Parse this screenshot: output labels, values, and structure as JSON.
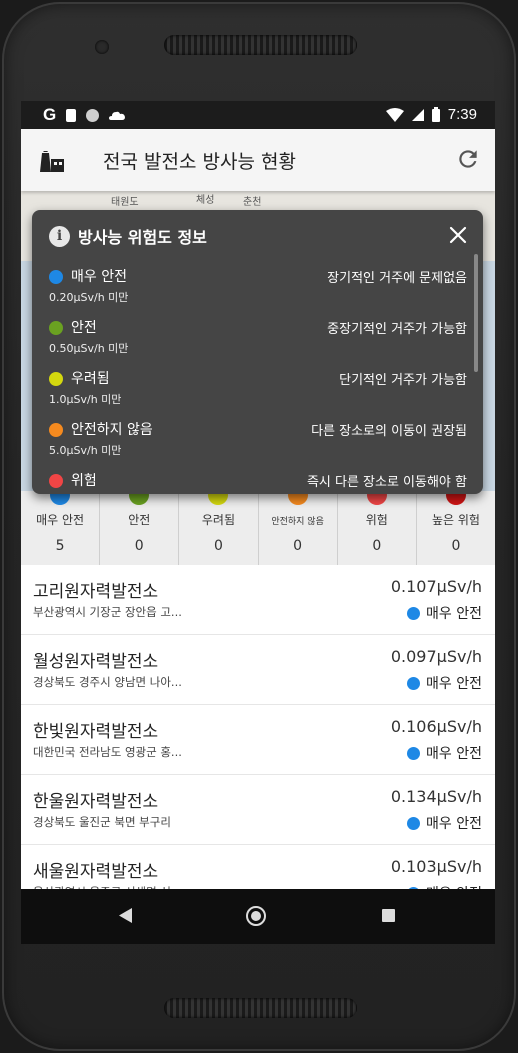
{
  "status_bar": {
    "left_glyph": "G",
    "time": "7:39"
  },
  "app_bar": {
    "title": "전국 발전소 방사능 현황"
  },
  "map": {
    "labels": [
      "태원도",
      "체성",
      "춘천"
    ]
  },
  "dialog": {
    "title": "방사능 위험도 정보",
    "items": [
      {
        "name": "매우 안전",
        "limit": "0.20μSv/h 미만",
        "desc": "장기적인 거주에 문제없음",
        "color": "#1e88e5"
      },
      {
        "name": "안전",
        "limit": "0.50μSv/h 미만",
        "desc": "중장기적인 거주가 가능함",
        "color": "#6aa121"
      },
      {
        "name": "우려됨",
        "limit": "1.0μSv/h 미만",
        "desc": "단기적인 거주가 가능함",
        "color": "#d4d80f"
      },
      {
        "name": "안전하지 않음",
        "limit": "5.0μSv/h 미만",
        "desc": "다른 장소로의 이동이 권장됨",
        "color": "#f58a1f"
      },
      {
        "name": "위험",
        "limit": "",
        "desc": "즉시 다른 장소로 이동해야 함",
        "color": "#f04545"
      }
    ]
  },
  "levels": [
    {
      "name": "매우 안전",
      "count": "5",
      "color": "#1e88e5"
    },
    {
      "name": "안전",
      "count": "0",
      "color": "#6aa121"
    },
    {
      "name": "우려됨",
      "count": "0",
      "color": "#d4d80f"
    },
    {
      "name": "안전하지 않음",
      "count": "0",
      "color": "#f58a1f"
    },
    {
      "name": "위험",
      "count": "0",
      "color": "#f04545"
    },
    {
      "name": "높은 위험",
      "count": "0",
      "color": "#d01515"
    }
  ],
  "plants": [
    {
      "name": "고리원자력발전소",
      "address": "부산광역시 기장군 장안읍 고...",
      "value": "0.107μSv/h",
      "status": "매우 안전",
      "color": "#1e88e5"
    },
    {
      "name": "월성원자력발전소",
      "address": "경상북도 경주시 양남면 나아...",
      "value": "0.097μSv/h",
      "status": "매우 안전",
      "color": "#1e88e5"
    },
    {
      "name": "한빛원자력발전소",
      "address": "대한민국 전라남도 영광군 홍...",
      "value": "0.106μSv/h",
      "status": "매우 안전",
      "color": "#1e88e5"
    },
    {
      "name": "한울원자력발전소",
      "address": "경상북도 울진군 북면 부구리",
      "value": "0.134μSv/h",
      "status": "매우 안전",
      "color": "#1e88e5"
    },
    {
      "name": "새울원자력발전소",
      "address": "울산광역시 울주군 서생면 신...",
      "value": "0.103μSv/h",
      "status": "매우 안전",
      "color": "#1e88e5"
    }
  ]
}
